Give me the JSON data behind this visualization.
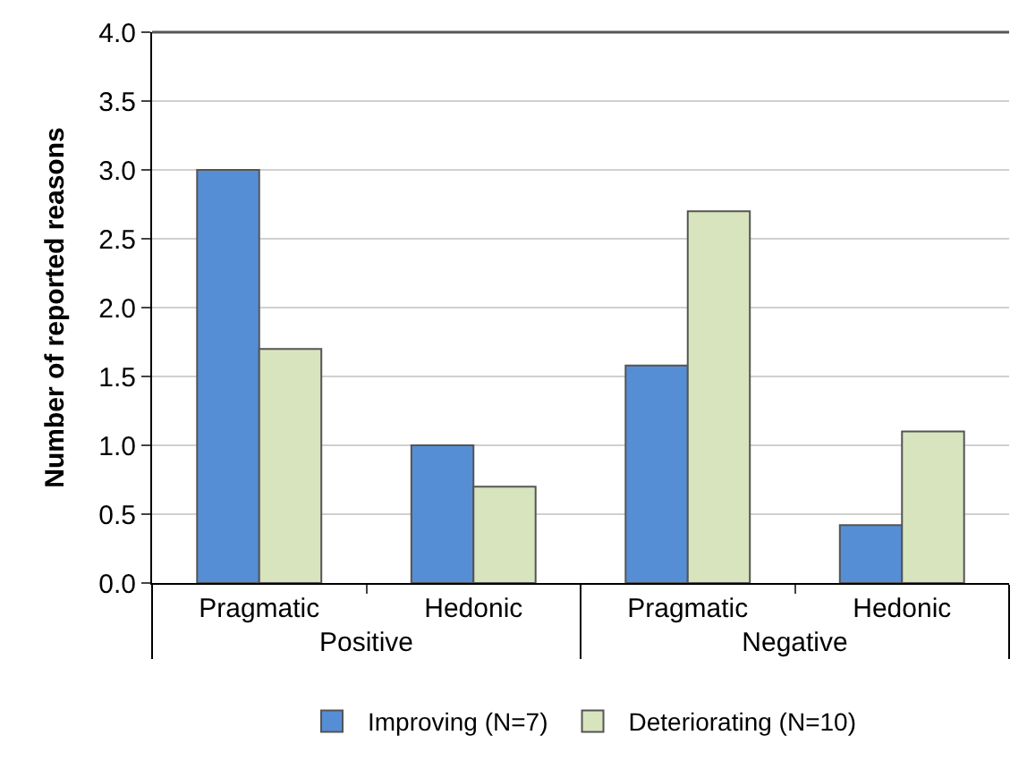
{
  "chart_data": {
    "type": "bar",
    "ylabel": "Number of reported reasons",
    "categories": [
      "Pragmatic",
      "Hedonic",
      "Pragmatic",
      "Hedonic"
    ],
    "annotations": [
      "Positive",
      "Negative"
    ],
    "series": [
      {
        "name": "Improving (N=7)",
        "color": "#558ed5",
        "values": [
          3.0,
          1.0,
          1.58,
          0.42
        ]
      },
      {
        "name": "Deteriorating (N=10)",
        "color": "#d7e4bd",
        "values": [
          1.7,
          0.7,
          2.7,
          1.1
        ]
      }
    ],
    "ylim": [
      0,
      4
    ],
    "yticks": [
      {
        "value": 0,
        "label": "0.0"
      },
      {
        "value": 0.5,
        "label": "0.5"
      },
      {
        "value": 1,
        "label": "1.0"
      },
      {
        "value": 1.5,
        "label": "1.5"
      },
      {
        "value": 2,
        "label": "2.0"
      },
      {
        "value": 2.5,
        "label": "2.5"
      },
      {
        "value": 3,
        "label": "3.0"
      },
      {
        "value": 3.5,
        "label": "3.5"
      },
      {
        "value": 4,
        "label": "4.0"
      }
    ],
    "grid": "y",
    "legend": "bottom"
  }
}
